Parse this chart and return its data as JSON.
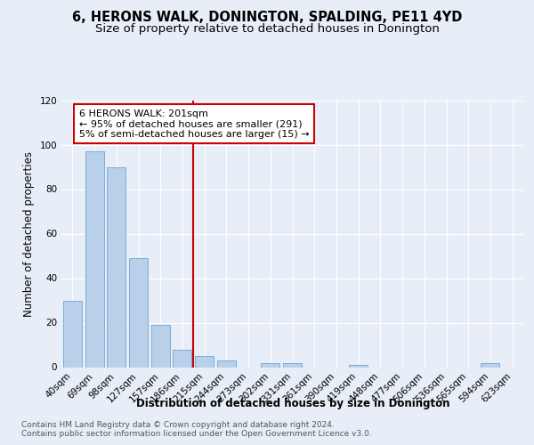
{
  "title": "6, HERONS WALK, DONINGTON, SPALDING, PE11 4YD",
  "subtitle": "Size of property relative to detached houses in Donington",
  "xlabel": "Distribution of detached houses by size in Donington",
  "ylabel": "Number of detached properties",
  "bar_labels": [
    "40sqm",
    "69sqm",
    "98sqm",
    "127sqm",
    "157sqm",
    "186sqm",
    "215sqm",
    "244sqm",
    "273sqm",
    "302sqm",
    "331sqm",
    "361sqm",
    "390sqm",
    "419sqm",
    "448sqm",
    "477sqm",
    "506sqm",
    "536sqm",
    "565sqm",
    "594sqm",
    "623sqm"
  ],
  "bar_values": [
    30,
    97,
    90,
    49,
    19,
    8,
    5,
    3,
    0,
    2,
    2,
    0,
    0,
    1,
    0,
    0,
    0,
    0,
    0,
    2,
    0
  ],
  "bar_color": "#b8d0ea",
  "bar_edge_color": "#7aadd4",
  "vline_index": 6,
  "vline_color": "#cc0000",
  "annotation_text": "6 HERONS WALK: 201sqm\n← 95% of detached houses are smaller (291)\n5% of semi-detached houses are larger (15) →",
  "annotation_box_color": "#ffffff",
  "annotation_box_edge": "#cc0000",
  "footnote1": "Contains HM Land Registry data © Crown copyright and database right 2024.",
  "footnote2": "Contains public sector information licensed under the Open Government Licence v3.0.",
  "bg_color": "#e8eef8",
  "plot_bg_color": "#e8eef8",
  "ylim": [
    0,
    120
  ],
  "yticks": [
    0,
    20,
    40,
    60,
    80,
    100,
    120
  ],
  "title_fontsize": 10.5,
  "subtitle_fontsize": 9.5,
  "xlabel_fontsize": 8.5,
  "ylabel_fontsize": 8.5,
  "tick_fontsize": 7.5,
  "annot_fontsize": 8.0,
  "footnote_fontsize": 6.5
}
